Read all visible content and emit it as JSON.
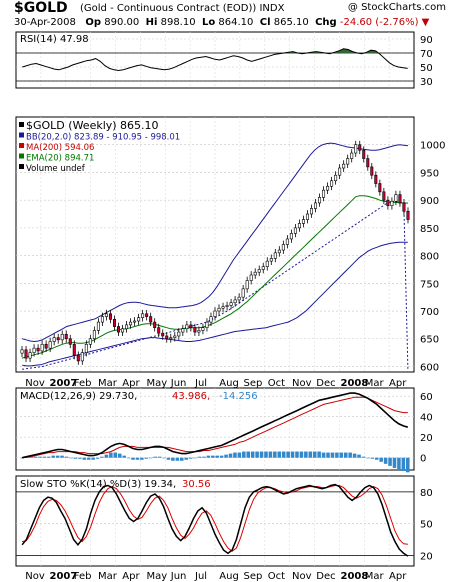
{
  "header": {
    "symbol": "$GOLD",
    "description": "(Gold - Continuous Contract (EOD)) INDX",
    "brand": "@ StockCharts.com",
    "date": "30-Apr-2008",
    "op_label": "Op",
    "op": "890.00",
    "hi_label": "Hi",
    "hi": "898.10",
    "lo_label": "Lo",
    "lo": "864.10",
    "cl_label": "Cl",
    "cl": "865.10",
    "chg_label": "Chg",
    "chg": "-24.60 (-2.76%)",
    "chg_arrow": "▼"
  },
  "colors": {
    "price_up": "#ffffff",
    "price_down": "#cc0033",
    "bollinger": "#1a1a99",
    "ma200": "#cc0000",
    "ema20": "#007700",
    "rsi_fill": "#336633",
    "macd_hist": "#3388cc",
    "stoch_d": "#dd0000"
  },
  "chart_data": [
    {
      "type": "line",
      "panel": "rsi",
      "legend": "RSI(14) 47.98",
      "ylim": [
        20,
        100
      ],
      "yticks": [
        30,
        50,
        70,
        90
      ],
      "reference_lines": [
        30,
        70
      ],
      "series": [
        {
          "name": "RSI(14)",
          "values": [
            50,
            52,
            54,
            55,
            53,
            51,
            49,
            47,
            46,
            48,
            50,
            53,
            55,
            57,
            59,
            60,
            62,
            58,
            52,
            48,
            46,
            45,
            46,
            48,
            50,
            52,
            53,
            51,
            49,
            48,
            47,
            46,
            47,
            49,
            52,
            55,
            58,
            61,
            63,
            64,
            65,
            63,
            61,
            60,
            62,
            64,
            66,
            65,
            63,
            60,
            58,
            60,
            62,
            64,
            66,
            68,
            69,
            70,
            71,
            72,
            70,
            69,
            70,
            71,
            72,
            71,
            70,
            69,
            71,
            73,
            76,
            75,
            72,
            70,
            69,
            71,
            74,
            73,
            68,
            62,
            56,
            52,
            50,
            49,
            47.98
          ]
        }
      ]
    },
    {
      "type": "bar",
      "panel": "price",
      "legend": [
        "$GOLD (Weekly) 865.10",
        "BB(20,2.0) 823.89 - 910.95 - 998.01",
        "MA(200) 594.06",
        "EMA(20) 894.71",
        "Volume undef"
      ],
      "ylim": [
        590,
        1050
      ],
      "yticks": [
        600,
        650,
        700,
        750,
        800,
        850,
        900,
        950,
        1000
      ],
      "x_labels": [
        "Nov",
        "2007",
        "Feb",
        "Mar",
        "Apr",
        "May",
        "Jun",
        "Jul",
        "Aug",
        "Sep",
        "Oct",
        "Nov",
        "Dec",
        "2008",
        "Mar",
        "Apr"
      ],
      "series": [
        {
          "name": "$GOLD",
          "close": [
            630,
            615,
            625,
            633,
            628,
            640,
            633,
            645,
            652,
            648,
            658,
            650,
            640,
            620,
            610,
            625,
            640,
            650,
            665,
            680,
            690,
            695,
            685,
            672,
            662,
            668,
            675,
            680,
            682,
            688,
            695,
            690,
            680,
            670,
            660,
            655,
            650,
            652,
            655,
            662,
            668,
            675,
            670,
            662,
            665,
            670,
            680,
            690,
            700,
            705,
            708,
            710,
            715,
            720,
            725,
            740,
            755,
            765,
            770,
            775,
            780,
            790,
            795,
            805,
            810,
            820,
            830,
            840,
            850,
            858,
            865,
            875,
            885,
            895,
            905,
            918,
            925,
            935,
            945,
            958,
            965,
            975,
            985,
            1000,
            990,
            975,
            960,
            945,
            930,
            915,
            900,
            890,
            898,
            910,
            895,
            880,
            865.1
          ]
        },
        {
          "name": "BB upper",
          "values": [
            650,
            648,
            646,
            645,
            646,
            648,
            652,
            656,
            660,
            664,
            668,
            672,
            674,
            676,
            678,
            680,
            682,
            684,
            686,
            690,
            694,
            698,
            702,
            706,
            710,
            713,
            715,
            716,
            716,
            715,
            713,
            711,
            710,
            709,
            708,
            707,
            706,
            706,
            706,
            707,
            708,
            709,
            710,
            712,
            715,
            720,
            726,
            734,
            744,
            756,
            768,
            780,
            792,
            802,
            812,
            822,
            832,
            842,
            852,
            862,
            872,
            882,
            892,
            902,
            912,
            922,
            932,
            942,
            952,
            962,
            972,
            982,
            990,
            996,
            1000,
            1002,
            1003,
            1002,
            1000,
            998,
            996,
            995,
            994,
            993,
            992,
            991,
            990,
            990,
            991,
            993,
            995,
            997,
            999,
            1000,
            999,
            998.01
          ]
        },
        {
          "name": "BB lower",
          "values": [
            602,
            601,
            601,
            602,
            603,
            605,
            608,
            610,
            612,
            614,
            616,
            618,
            620,
            622,
            624,
            626,
            628,
            630,
            632,
            634,
            636,
            638,
            640,
            642,
            644,
            646,
            648,
            650,
            651,
            652,
            652,
            651,
            650,
            649,
            648,
            647,
            646,
            645,
            645,
            646,
            647,
            649,
            651,
            653,
            655,
            657,
            659,
            661,
            663,
            664,
            665,
            666,
            667,
            668,
            669,
            670,
            672,
            674,
            676,
            678,
            680,
            684,
            688,
            694,
            700,
            708,
            716,
            724,
            732,
            740,
            748,
            756,
            764,
            772,
            780,
            788,
            796,
            802,
            808,
            812,
            815,
            818,
            820,
            822,
            823,
            824,
            824,
            823.89
          ]
        },
        {
          "name": "MA(200)",
          "values": [
            595,
            596,
            597,
            598,
            599,
            600,
            602,
            604,
            606,
            608,
            610,
            612,
            614,
            616,
            618,
            620,
            622,
            624,
            626,
            628,
            630,
            632,
            634,
            636,
            638,
            640,
            642,
            644,
            646,
            648,
            650,
            652,
            654,
            656,
            658,
            660,
            662,
            664,
            666,
            668,
            670,
            672,
            674,
            676,
            678,
            680,
            684,
            688,
            692,
            696,
            700,
            705,
            710,
            715,
            720,
            725,
            730,
            735,
            740,
            745,
            750,
            755,
            760,
            765,
            770,
            775,
            780,
            785,
            790,
            795,
            800,
            805,
            810,
            815,
            820,
            825,
            830,
            835,
            840,
            845,
            850,
            855,
            860,
            865,
            870,
            875,
            880,
            885,
            890,
            895,
            897,
            898,
            896,
            895,
            594.06
          ]
        },
        {
          "name": "EMA(20)",
          "values": [
            615,
            617,
            619,
            621,
            623,
            625,
            628,
            631,
            634,
            637,
            640,
            642,
            643,
            643,
            642,
            642,
            643,
            645,
            648,
            652,
            656,
            660,
            663,
            665,
            666,
            667,
            668,
            670,
            672,
            674,
            676,
            677,
            677,
            676,
            674,
            672,
            670,
            668,
            667,
            667,
            668,
            669,
            670,
            670,
            670,
            671,
            673,
            676,
            679,
            683,
            687,
            691,
            695,
            700,
            705,
            711,
            717,
            724,
            731,
            738,
            745,
            752,
            759,
            766,
            773,
            780,
            787,
            794,
            801,
            808,
            815,
            822,
            829,
            836,
            843,
            850,
            857,
            864,
            871,
            878,
            885,
            892,
            899,
            906,
            908,
            908,
            907,
            905,
            903,
            900,
            898,
            897,
            896,
            896,
            895,
            895,
            894.71
          ]
        }
      ]
    },
    {
      "type": "line",
      "panel": "macd",
      "legend": [
        "MACD(12,26,9) 29.730,",
        "43.986,",
        "-14.256"
      ],
      "ylim": [
        -12,
        68
      ],
      "yticks": [
        0,
        20,
        40,
        60
      ],
      "series": [
        {
          "name": "MACD",
          "values": [
            0,
            1,
            2,
            3,
            4,
            5,
            6,
            7,
            8,
            8,
            7,
            6,
            5,
            4,
            3,
            2,
            2,
            3,
            5,
            8,
            11,
            13,
            14,
            13,
            11,
            9,
            8,
            8,
            9,
            10,
            11,
            11,
            10,
            8,
            6,
            5,
            4,
            4,
            5,
            6,
            7,
            8,
            9,
            10,
            11,
            12,
            14,
            16,
            18,
            20,
            22,
            24,
            26,
            28,
            30,
            32,
            34,
            36,
            38,
            40,
            42,
            44,
            46,
            48,
            50,
            52,
            54,
            56,
            57,
            58,
            59,
            60,
            61,
            62,
            63,
            63,
            62,
            60,
            58,
            55,
            52,
            48,
            44,
            40,
            36,
            33,
            31,
            29.73
          ]
        },
        {
          "name": "Signal",
          "values": [
            0,
            0.5,
            1,
            2,
            3,
            4,
            5,
            5,
            6,
            6,
            6,
            6,
            6,
            5,
            5,
            4,
            4,
            4,
            4,
            5,
            6,
            8,
            10,
            11,
            11,
            11,
            10,
            10,
            10,
            10,
            10,
            10,
            10,
            10,
            9,
            8,
            7,
            6,
            6,
            6,
            6,
            7,
            7,
            8,
            9,
            10,
            11,
            12,
            13,
            15,
            16,
            18,
            20,
            22,
            24,
            26,
            28,
            30,
            32,
            34,
            36,
            38,
            40,
            42,
            44,
            46,
            48,
            50,
            52,
            53,
            54,
            55,
            56,
            57,
            58,
            59,
            59,
            59,
            58,
            56,
            54,
            52,
            50,
            48,
            46,
            45,
            44,
            43.986
          ]
        },
        {
          "name": "Histogram",
          "values": [
            0,
            0.5,
            1,
            1,
            1,
            1,
            1,
            2,
            2,
            2,
            1,
            0,
            -1,
            -1,
            -2,
            -2,
            -2,
            -1,
            1,
            3,
            5,
            5,
            4,
            2,
            0,
            -2,
            -2,
            -2,
            -1,
            0,
            1,
            1,
            0,
            -2,
            -3,
            -3,
            -3,
            -2,
            -1,
            0,
            1,
            1,
            2,
            2,
            2,
            2,
            3,
            4,
            5,
            5,
            6,
            6,
            6,
            6,
            6,
            6,
            6,
            6,
            6,
            6,
            6,
            6,
            6,
            6,
            6,
            6,
            6,
            6,
            5,
            5,
            5,
            5,
            5,
            5,
            5,
            4,
            3,
            1,
            0,
            -1,
            -2,
            -4,
            -6,
            -8,
            -10,
            -12,
            -13,
            -14.256
          ]
        }
      ]
    },
    {
      "type": "line",
      "panel": "stoch",
      "legend": [
        "Slow STO %K(14) %D(3) 19.34,",
        "30.56"
      ],
      "ylim": [
        10,
        95
      ],
      "yticks": [
        20,
        50,
        80
      ],
      "reference_lines": [
        20,
        80
      ],
      "x_labels": [
        "Nov",
        "2007",
        "Feb",
        "Mar",
        "Apr",
        "May",
        "Jun",
        "Jul",
        "Aug",
        "Sep",
        "Oct",
        "Nov",
        "Dec",
        "2008",
        "Mar",
        "Apr"
      ],
      "series": [
        {
          "name": "%K",
          "values": [
            30,
            35,
            45,
            55,
            65,
            72,
            75,
            74,
            70,
            62,
            55,
            45,
            35,
            30,
            35,
            45,
            60,
            72,
            80,
            85,
            86,
            84,
            78,
            70,
            62,
            55,
            52,
            55,
            62,
            70,
            76,
            78,
            74,
            66,
            55,
            45,
            38,
            34,
            38,
            46,
            55,
            62,
            65,
            60,
            50,
            40,
            32,
            25,
            22,
            25,
            35,
            50,
            65,
            75,
            80,
            82,
            84,
            85,
            84,
            82,
            80,
            78,
            79,
            81,
            83,
            84,
            85,
            86,
            85,
            84,
            83,
            84,
            86,
            87,
            85,
            80,
            75,
            72,
            75,
            80,
            84,
            86,
            84,
            78,
            68,
            55,
            42,
            33,
            26,
            22,
            19.34
          ]
        },
        {
          "name": "%D",
          "values": [
            33,
            34,
            40,
            48,
            58,
            66,
            71,
            73,
            72,
            68,
            62,
            54,
            45,
            37,
            33,
            38,
            47,
            59,
            70,
            78,
            83,
            85,
            83,
            78,
            71,
            63,
            57,
            54,
            56,
            62,
            69,
            74,
            76,
            72,
            65,
            55,
            46,
            39,
            36,
            40,
            46,
            54,
            60,
            62,
            58,
            50,
            41,
            33,
            27,
            24,
            27,
            37,
            50,
            63,
            73,
            79,
            82,
            84,
            84,
            83,
            81,
            80,
            79,
            80,
            81,
            83,
            84,
            85,
            85,
            85,
            84,
            84,
            85,
            86,
            86,
            84,
            80,
            76,
            74,
            76,
            79,
            83,
            85,
            83,
            77,
            67,
            55,
            43,
            35,
            31,
            30.56
          ]
        }
      ]
    }
  ]
}
